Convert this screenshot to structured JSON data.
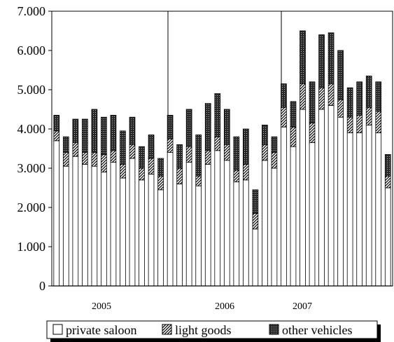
{
  "chart_data": {
    "type": "bar",
    "stacked": true,
    "y_ticks": [
      "0",
      "1.000",
      "2.000",
      "3.000",
      "4.000",
      "5.000",
      "6.000",
      "7.000"
    ],
    "ylim": [
      0,
      7000
    ],
    "year_labels": [
      "2005",
      "2006",
      "2007"
    ],
    "grid": false,
    "legend_position": "bottom",
    "series": [
      {
        "name": "private saloon",
        "pattern": "white",
        "values": [
          3700,
          3050,
          3300,
          3100,
          3050,
          2900,
          3150,
          2750,
          3250,
          2700,
          2850,
          2450,
          3400,
          2600,
          3150,
          2550,
          3100,
          3450,
          3200,
          2650,
          2700,
          1450,
          3200,
          3000,
          4050,
          3550,
          4500,
          3650,
          4500,
          4600,
          4300,
          3900,
          3900,
          4100,
          3900,
          2500
        ]
      },
      {
        "name": "light goods",
        "pattern": "hatch",
        "values": [
          250,
          350,
          350,
          300,
          350,
          450,
          300,
          350,
          350,
          300,
          400,
          350,
          350,
          400,
          400,
          250,
          350,
          350,
          400,
          300,
          400,
          400,
          400,
          400,
          500,
          500,
          650,
          500,
          550,
          550,
          450,
          400,
          450,
          450,
          550,
          300
        ]
      },
      {
        "name": "other vehicles",
        "pattern": "dots",
        "values": [
          400,
          400,
          600,
          850,
          1100,
          950,
          900,
          850,
          700,
          550,
          600,
          450,
          600,
          600,
          950,
          1050,
          1200,
          1100,
          900,
          850,
          900,
          600,
          500,
          400,
          600,
          650,
          1350,
          1050,
          1350,
          1300,
          1250,
          750,
          850,
          800,
          750,
          550
        ]
      }
    ]
  }
}
